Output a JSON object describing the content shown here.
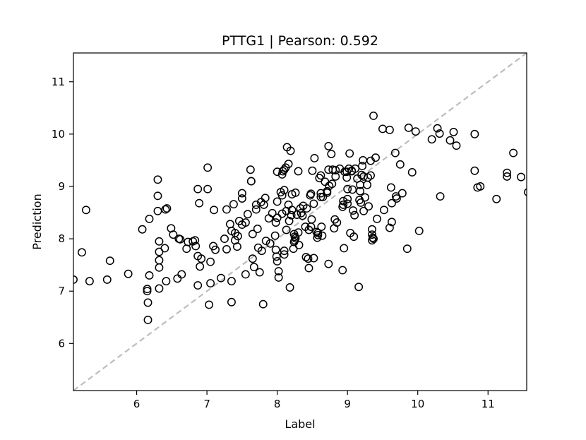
{
  "chart_data": {
    "type": "scatter",
    "title": "PTTG1  |  Pearson: 0.592",
    "xlabel": "Label",
    "ylabel": "Prediction",
    "xlim": [
      5.1,
      11.55
    ],
    "ylim": [
      5.1,
      11.55
    ],
    "xticks": [
      "6",
      "7",
      "8",
      "9",
      "10",
      "11"
    ],
    "yticks": [
      "6",
      "7",
      "8",
      "9",
      "10",
      "11"
    ],
    "grid": false,
    "identity_line": true,
    "colors": {
      "marker_edge": "#000000",
      "identity_line": "#bdbdbd"
    },
    "points": [
      [
        5.1,
        7.22
      ],
      [
        5.22,
        7.74
      ],
      [
        5.28,
        8.55
      ],
      [
        5.33,
        7.19
      ],
      [
        5.58,
        7.22
      ],
      [
        5.62,
        7.58
      ],
      [
        5.88,
        7.33
      ],
      [
        6.08,
        8.18
      ],
      [
        6.15,
        7.0
      ],
      [
        6.15,
        7.04
      ],
      [
        6.16,
        6.78
      ],
      [
        6.16,
        6.45
      ],
      [
        6.18,
        7.3
      ],
      [
        6.18,
        8.38
      ],
      [
        6.3,
        9.13
      ],
      [
        6.3,
        8.82
      ],
      [
        6.3,
        8.53
      ],
      [
        6.32,
        7.95
      ],
      [
        6.32,
        7.75
      ],
      [
        6.32,
        7.59
      ],
      [
        6.32,
        7.45
      ],
      [
        6.32,
        7.05
      ],
      [
        6.4,
        7.82
      ],
      [
        6.41,
        8.56
      ],
      [
        6.42,
        7.19
      ],
      [
        6.43,
        8.58
      ],
      [
        6.49,
        8.2
      ],
      [
        6.52,
        8.08
      ],
      [
        6.58,
        7.24
      ],
      [
        6.6,
        8.0
      ],
      [
        6.62,
        7.99
      ],
      [
        6.64,
        7.32
      ],
      [
        6.71,
        7.81
      ],
      [
        6.73,
        7.94
      ],
      [
        6.8,
        7.95
      ],
      [
        6.83,
        7.97
      ],
      [
        6.84,
        7.86
      ],
      [
        6.87,
        8.95
      ],
      [
        6.87,
        7.67
      ],
      [
        6.87,
        7.11
      ],
      [
        6.89,
        8.68
      ],
      [
        6.9,
        7.47
      ],
      [
        6.92,
        7.62
      ],
      [
        7.01,
        9.36
      ],
      [
        7.01,
        8.95
      ],
      [
        7.03,
        6.74
      ],
      [
        7.05,
        7.56
      ],
      [
        7.05,
        7.15
      ],
      [
        7.09,
        7.86
      ],
      [
        7.1,
        8.55
      ],
      [
        7.12,
        7.79
      ],
      [
        7.2,
        7.25
      ],
      [
        7.25,
        8.0
      ],
      [
        7.28,
        8.56
      ],
      [
        7.28,
        7.8
      ],
      [
        7.33,
        8.28
      ],
      [
        7.35,
        7.19
      ],
      [
        7.35,
        6.79
      ],
      [
        7.35,
        8.15
      ],
      [
        7.38,
        8.66
      ],
      [
        7.4,
        8.11
      ],
      [
        7.4,
        7.97
      ],
      [
        7.43,
        7.85
      ],
      [
        7.44,
        8.05
      ],
      [
        7.46,
        8.34
      ],
      [
        7.5,
        8.87
      ],
      [
        7.5,
        8.77
      ],
      [
        7.5,
        8.27
      ],
      [
        7.55,
        7.32
      ],
      [
        7.55,
        8.31
      ],
      [
        7.58,
        8.47
      ],
      [
        7.62,
        9.32
      ],
      [
        7.63,
        9.1
      ],
      [
        7.63,
        9.1
      ],
      [
        7.65,
        8.09
      ],
      [
        7.65,
        7.62
      ],
      [
        7.67,
        7.46
      ],
      [
        7.7,
        8.65
      ],
      [
        7.7,
        8.56
      ],
      [
        7.72,
        8.19
      ],
      [
        7.73,
        7.83
      ],
      [
        7.75,
        7.36
      ],
      [
        7.77,
        8.7
      ],
      [
        7.78,
        7.77
      ],
      [
        7.8,
        6.75
      ],
      [
        7.81,
        8.65
      ],
      [
        7.83,
        8.78
      ],
      [
        7.84,
        7.96
      ],
      [
        7.88,
        8.39
      ],
      [
        7.9,
        7.91
      ],
      [
        7.93,
        8.49
      ],
      [
        7.97,
        8.06
      ],
      [
        7.98,
        8.31
      ],
      [
        7.98,
        7.79
      ],
      [
        7.99,
        7.66
      ],
      [
        8.0,
        9.28
      ],
      [
        8.0,
        8.71
      ],
      [
        8.0,
        8.4
      ],
      [
        8.0,
        7.57
      ],
      [
        8.02,
        7.38
      ],
      [
        8.02,
        7.26
      ],
      [
        8.05,
        8.89
      ],
      [
        8.07,
        9.23
      ],
      [
        8.07,
        8.83
      ],
      [
        8.07,
        8.48
      ],
      [
        8.08,
        9.29
      ],
      [
        8.1,
        9.32
      ],
      [
        8.1,
        8.93
      ],
      [
        8.1,
        7.7
      ],
      [
        8.1,
        7.77
      ],
      [
        8.12,
        9.36
      ],
      [
        8.13,
        8.53
      ],
      [
        8.13,
        8.17
      ],
      [
        8.14,
        9.75
      ],
      [
        8.16,
        9.43
      ],
      [
        8.16,
        8.65
      ],
      [
        8.17,
        8.34
      ],
      [
        8.18,
        7.07
      ],
      [
        8.19,
        9.68
      ],
      [
        8.2,
        8.45
      ],
      [
        8.21,
        8.85
      ],
      [
        8.21,
        8.55
      ],
      [
        8.23,
        7.81
      ],
      [
        8.24,
        7.94
      ],
      [
        8.24,
        8.09
      ],
      [
        8.25,
        8.04
      ],
      [
        8.25,
        7.97
      ],
      [
        8.26,
        8.01
      ],
      [
        8.26,
        8.88
      ],
      [
        8.28,
        8.46
      ],
      [
        8.3,
        9.29
      ],
      [
        8.3,
        8.12
      ],
      [
        8.31,
        7.88
      ],
      [
        8.33,
        8.58
      ],
      [
        8.34,
        8.49
      ],
      [
        8.36,
        8.44
      ],
      [
        8.37,
        8.63
      ],
      [
        8.4,
        8.23
      ],
      [
        8.41,
        7.65
      ],
      [
        8.42,
        8.58
      ],
      [
        8.44,
        7.62
      ],
      [
        8.45,
        8.17
      ],
      [
        8.45,
        7.44
      ],
      [
        8.47,
        8.83
      ],
      [
        8.48,
        8.86
      ],
      [
        8.48,
        8.23
      ],
      [
        8.49,
        8.37
      ],
      [
        8.5,
        9.3
      ],
      [
        8.52,
        8.67
      ],
      [
        8.52,
        7.63
      ],
      [
        8.53,
        9.54
      ],
      [
        8.56,
        8.13
      ],
      [
        8.57,
        8.02
      ],
      [
        8.58,
        8.11
      ],
      [
        8.58,
        8.07
      ],
      [
        8.6,
        9.16
      ],
      [
        8.62,
        9.21
      ],
      [
        8.62,
        8.87
      ],
      [
        8.62,
        8.8
      ],
      [
        8.63,
        8.23
      ],
      [
        8.64,
        8.06
      ],
      [
        8.65,
        8.8
      ],
      [
        8.68,
        9.09
      ],
      [
        8.71,
        8.91
      ],
      [
        8.71,
        8.88
      ],
      [
        8.73,
        9.77
      ],
      [
        8.73,
        9.32
      ],
      [
        8.73,
        7.52
      ],
      [
        8.74,
        9.01
      ],
      [
        8.77,
        9.62
      ],
      [
        8.78,
        9.05
      ],
      [
        8.79,
        9.32
      ],
      [
        8.81,
        8.2
      ],
      [
        8.82,
        8.37
      ],
      [
        8.83,
        9.19
      ],
      [
        8.83,
        9.31
      ],
      [
        8.85,
        8.31
      ],
      [
        8.89,
        9.34
      ],
      [
        8.93,
        7.4
      ],
      [
        8.93,
        8.61
      ],
      [
        8.94,
        8.72
      ],
      [
        8.94,
        8.65
      ],
      [
        8.95,
        7.82
      ],
      [
        8.96,
        9.28
      ],
      [
        8.99,
        9.28
      ],
      [
        8.99,
        9.17
      ],
      [
        9.0,
        8.67
      ],
      [
        9.0,
        8.95
      ],
      [
        9.0,
        8.76
      ],
      [
        9.02,
        9.34
      ],
      [
        9.03,
        9.63
      ],
      [
        9.04,
        8.11
      ],
      [
        9.06,
        9.3
      ],
      [
        9.06,
        9.29
      ],
      [
        9.07,
        8.94
      ],
      [
        9.08,
        8.54
      ],
      [
        9.09,
        8.04
      ],
      [
        9.1,
        8.45
      ],
      [
        9.11,
        9.34
      ],
      [
        9.14,
        9.15
      ],
      [
        9.16,
        7.08
      ],
      [
        9.17,
        8.74
      ],
      [
        9.18,
        9.03
      ],
      [
        9.18,
        8.91
      ],
      [
        9.19,
        8.69
      ],
      [
        9.2,
        9.22
      ],
      [
        9.21,
        9.39
      ],
      [
        9.22,
        9.5
      ],
      [
        9.23,
        9.19
      ],
      [
        9.23,
        8.53
      ],
      [
        9.25,
        8.79
      ],
      [
        9.28,
        9.03
      ],
      [
        9.29,
        9.17
      ],
      [
        9.3,
        8.62
      ],
      [
        9.33,
        9.49
      ],
      [
        9.33,
        9.21
      ],
      [
        9.35,
        8.18
      ],
      [
        9.35,
        8.08
      ],
      [
        9.35,
        7.97
      ],
      [
        9.36,
        8.02
      ],
      [
        9.37,
        8.0
      ],
      [
        9.37,
        10.35
      ],
      [
        9.4,
        9.55
      ],
      [
        9.42,
        8.38
      ],
      [
        9.5,
        10.1
      ],
      [
        9.52,
        8.55
      ],
      [
        9.6,
        10.08
      ],
      [
        9.6,
        8.21
      ],
      [
        9.62,
        8.98
      ],
      [
        9.63,
        8.68
      ],
      [
        9.63,
        8.32
      ],
      [
        9.68,
        9.64
      ],
      [
        9.69,
        8.81
      ],
      [
        9.7,
        8.77
      ],
      [
        9.75,
        9.42
      ],
      [
        9.78,
        8.87
      ],
      [
        9.85,
        7.81
      ],
      [
        9.87,
        10.12
      ],
      [
        9.92,
        9.27
      ],
      [
        9.97,
        10.05
      ],
      [
        10.02,
        8.15
      ],
      [
        10.2,
        9.9
      ],
      [
        10.28,
        10.11
      ],
      [
        10.31,
        10.01
      ],
      [
        10.32,
        8.81
      ],
      [
        10.46,
        9.88
      ],
      [
        10.51,
        10.04
      ],
      [
        10.55,
        9.78
      ],
      [
        10.81,
        10.0
      ],
      [
        10.81,
        9.3
      ],
      [
        10.85,
        8.98
      ],
      [
        10.89,
        9.0
      ],
      [
        11.12,
        8.76
      ],
      [
        11.27,
        9.26
      ],
      [
        11.27,
        9.19
      ],
      [
        11.36,
        9.64
      ],
      [
        11.47,
        9.18
      ],
      [
        11.57,
        8.89
      ]
    ]
  }
}
